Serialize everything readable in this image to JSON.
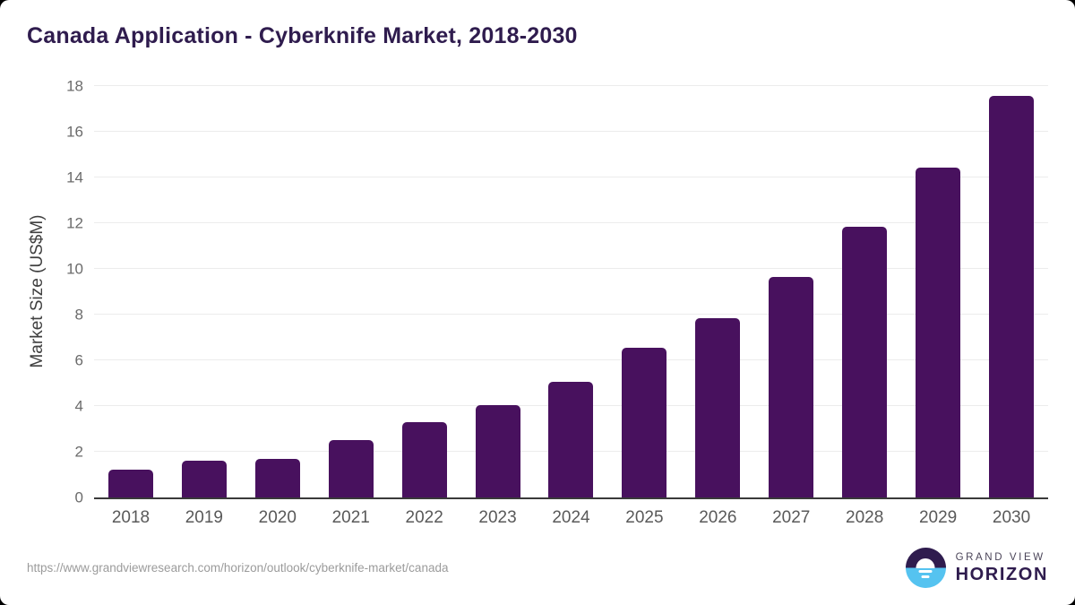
{
  "header": {
    "title": "Canada Application - Cyberknife Market, 2018-2030"
  },
  "chart_data": {
    "type": "bar",
    "title": "Canada Application - Cyberknife Market, 2018-2030",
    "categories": [
      "2018",
      "2019",
      "2020",
      "2021",
      "2022",
      "2023",
      "2024",
      "2025",
      "2026",
      "2027",
      "2028",
      "2029",
      "2030"
    ],
    "values": [
      1.2,
      1.6,
      1.7,
      2.5,
      3.3,
      4.05,
      5.05,
      6.55,
      7.85,
      9.65,
      11.85,
      14.45,
      17.55
    ],
    "xlabel": "",
    "ylabel": "Market Size (US$M)",
    "ylim": [
      0,
      18
    ],
    "ytick_step": 2,
    "yticks": [
      0,
      2,
      4,
      6,
      8,
      10,
      12,
      14,
      16,
      18
    ],
    "grid": "horizontal",
    "legend": "none",
    "bar_color": "#48115e"
  },
  "colors": {
    "title_text": "#2f1c4e",
    "bar": "#48115e",
    "gridline": "#ececec",
    "axis_line": "#3a3a3a",
    "x_tick_text": "#595959",
    "y_tick_text": "#6b6b6b",
    "source_text": "#9b9b9b",
    "logo_purple": "#2f1c4e",
    "logo_blue": "#55c3f0"
  },
  "footer": {
    "source_url": "https://www.grandviewresearch.com/horizon/outlook/cyberknife-market/canada",
    "logo": {
      "line1": "GRAND VIEW",
      "line2": "HORIZON"
    }
  }
}
